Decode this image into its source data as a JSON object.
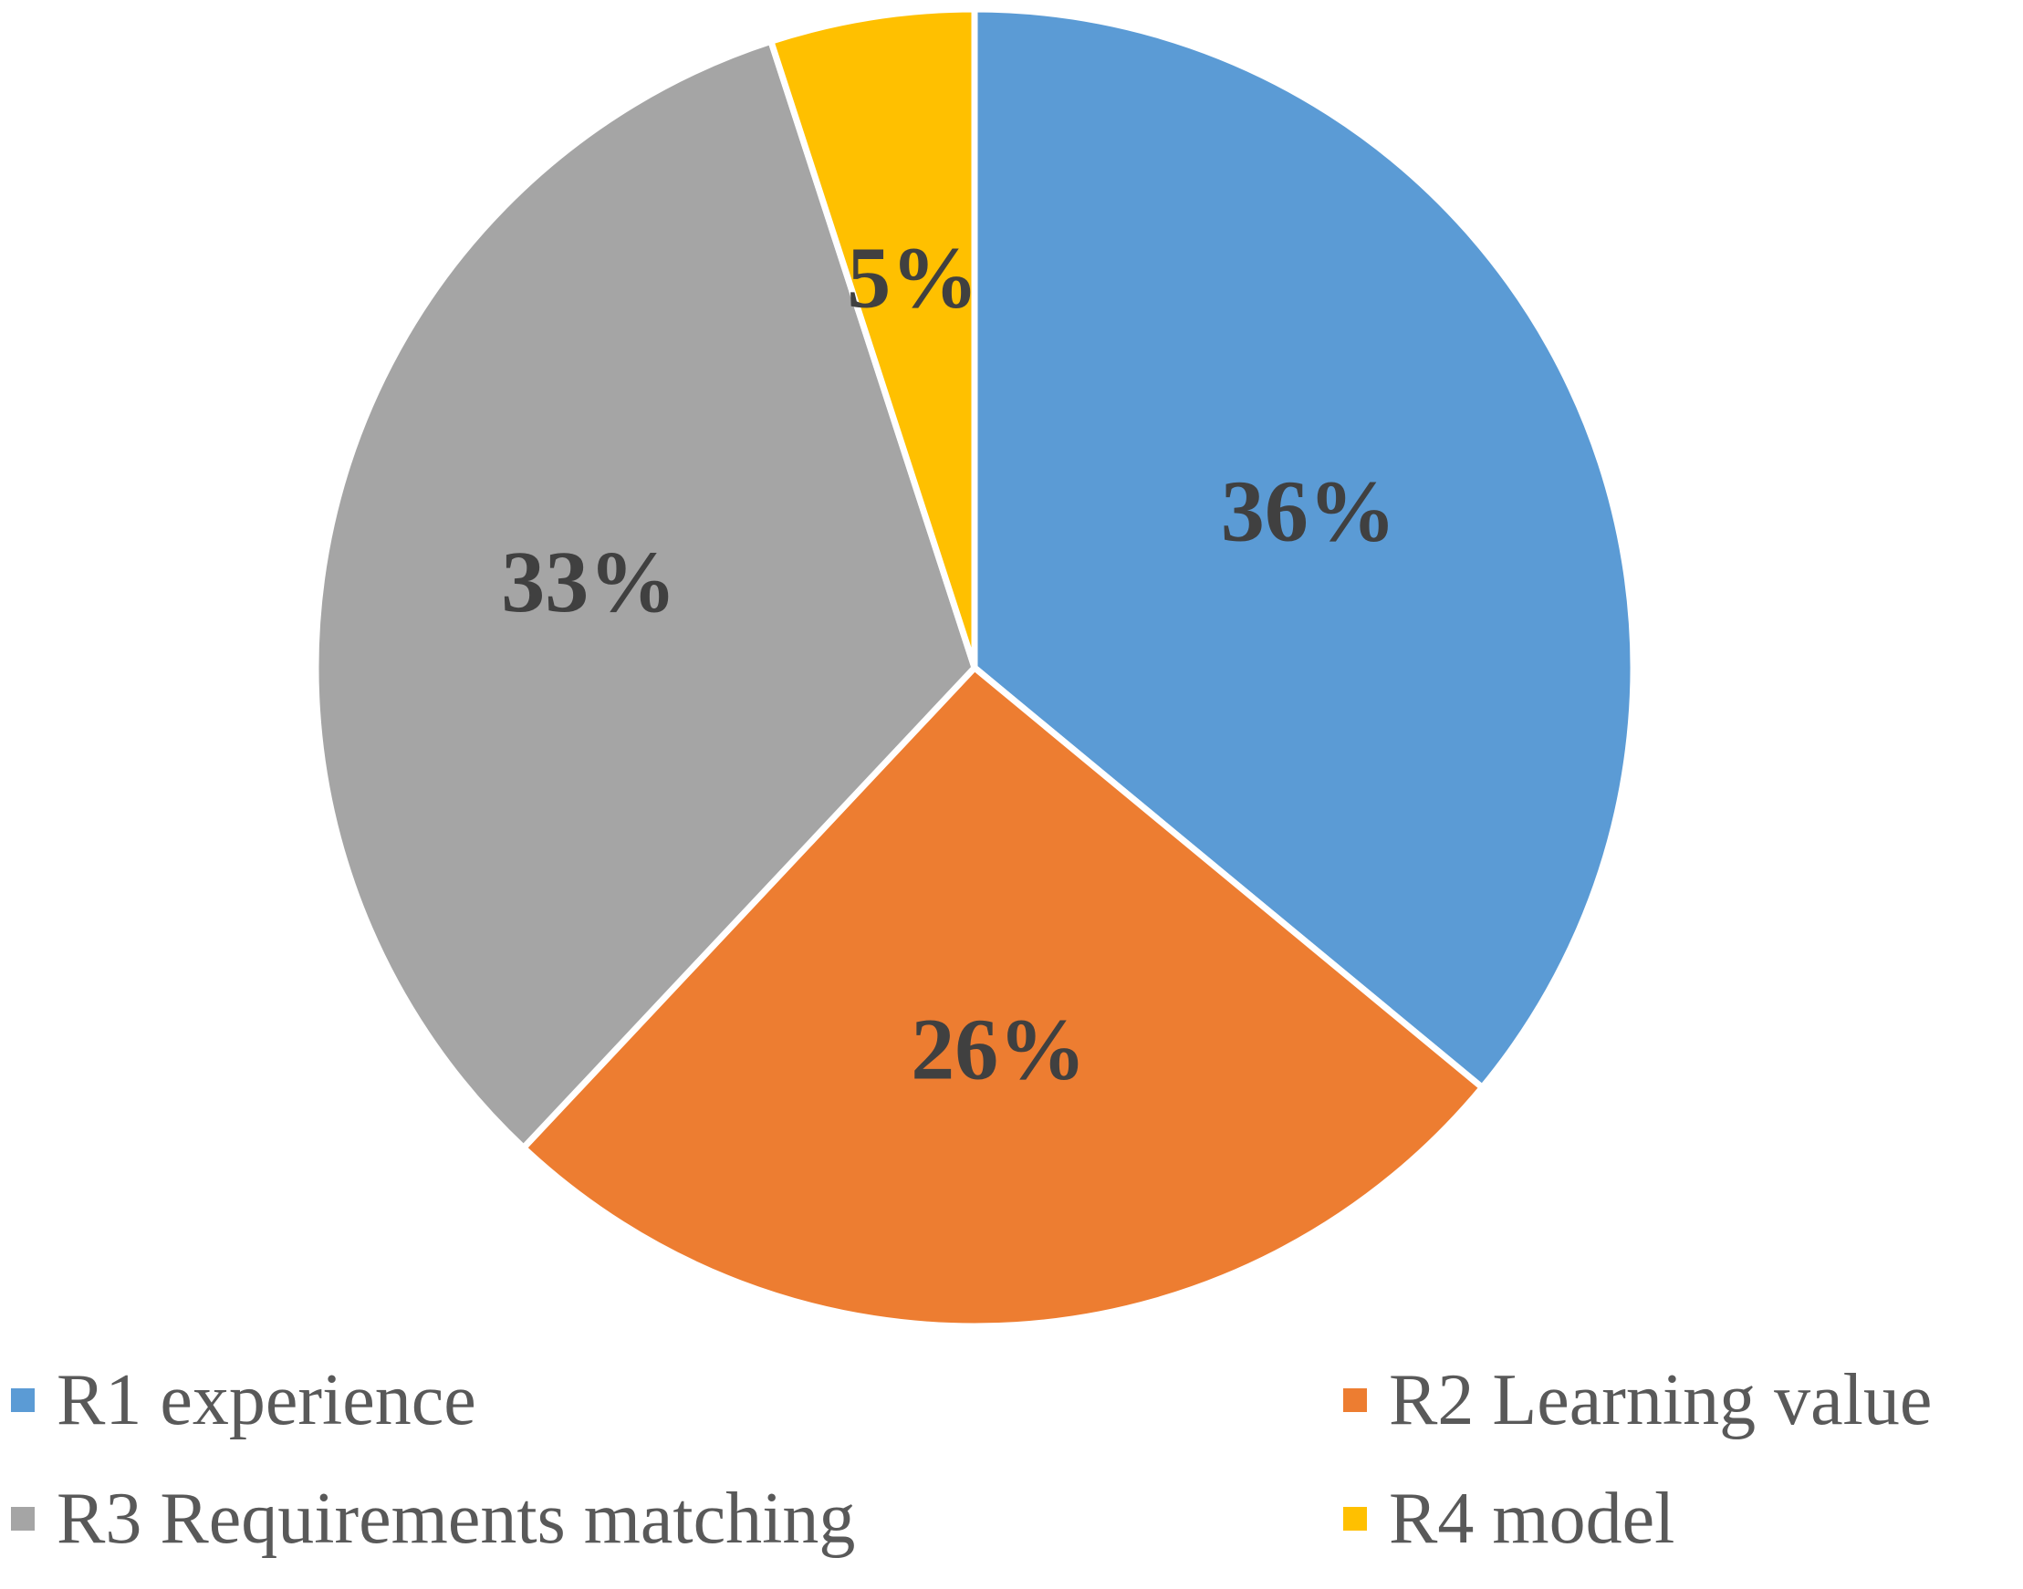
{
  "chart_data": {
    "type": "pie",
    "start_angle_deg": 0,
    "direction": "clockwise",
    "slices": [
      {
        "name": "R1 experience",
        "value": 36,
        "label": "36%",
        "color": "#5B9BD5"
      },
      {
        "name": "R2 Learning value",
        "value": 26,
        "label": "26%",
        "color": "#ED7D31"
      },
      {
        "name": "R3 Requirements matching",
        "value": 33,
        "label": "33%",
        "color": "#A5A5A5"
      },
      {
        "name": "R4 model",
        "value": 5,
        "label": "5%",
        "color": "#FFC000"
      }
    ],
    "legend_position": "bottom",
    "label_color": "#404040",
    "legend_text_color": "#595959"
  }
}
